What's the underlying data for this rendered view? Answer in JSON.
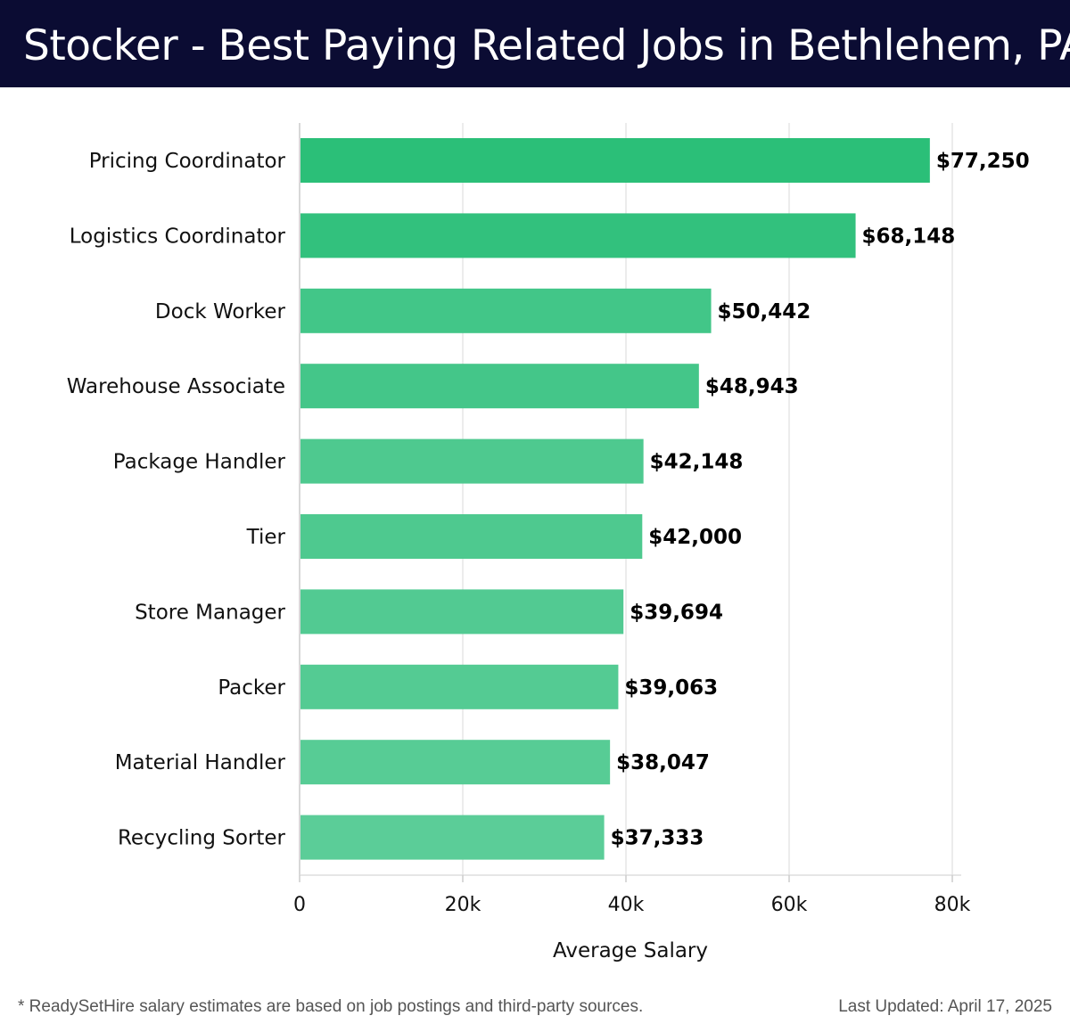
{
  "header": {
    "title": "Stocker - Best Paying Related Jobs in Bethlehem, PA"
  },
  "chart_data": {
    "type": "bar",
    "orientation": "horizontal",
    "title": "Stocker - Best Paying Related Jobs in Bethlehem, PA",
    "categories": [
      "Pricing Coordinator",
      "Logistics Coordinator",
      "Dock Worker",
      "Warehouse Associate",
      "Package Handler",
      "Tier",
      "Store Manager",
      "Packer",
      "Material Handler",
      "Recycling Sorter"
    ],
    "values": [
      77250,
      68148,
      50442,
      48943,
      42148,
      42000,
      39694,
      39063,
      38047,
      37333
    ],
    "value_labels": [
      "$77,250",
      "$68,148",
      "$50,442",
      "$48,943",
      "$42,148",
      "$42,000",
      "$39,694",
      "$39,063",
      "$38,047",
      "$37,333"
    ],
    "xlabel": "Average Salary",
    "ylabel": "",
    "xlim": [
      0,
      80000
    ],
    "xticks": [
      0,
      20000,
      40000,
      60000,
      80000
    ],
    "xtick_labels": [
      "0",
      "20k",
      "40k",
      "60k",
      "80k"
    ],
    "grid": true,
    "bar_color_high": "#2bbf78",
    "bar_color_low": "#5bcd98"
  },
  "footer": {
    "note": "* ReadySetHire salary estimates are based on job postings and third-party sources.",
    "updated": "Last Updated: April 17, 2025"
  }
}
